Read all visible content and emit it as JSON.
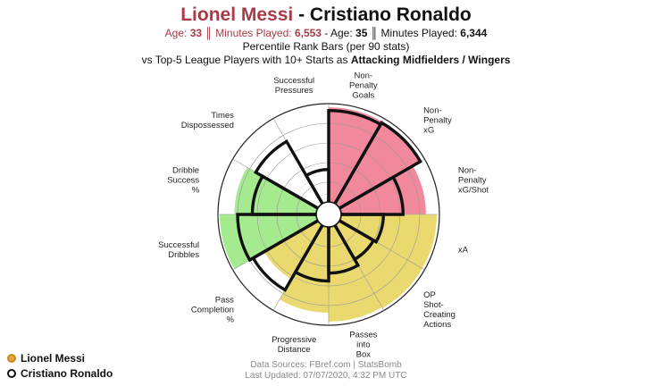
{
  "title": {
    "player1": "Lionel Messi",
    "separator": " - ",
    "player2": "Cristiano Ronaldo"
  },
  "info": {
    "age_label1": "Age: ",
    "age1": "33",
    "mins_label1": " ║ Minutes Played: ",
    "mins1": "6,553",
    "sep": " - ",
    "age_label2": "Age: ",
    "age2": "35",
    "mins_label2": " ║ Minutes Played: ",
    "mins2": "6,344"
  },
  "subtitle": "Percentile Rank Bars (per 90 stats)",
  "comparison": {
    "prefix": "vs Top-5 League Players with 10+ Starts as ",
    "group": "Attacking Midfielders / Wingers"
  },
  "legend": {
    "player1": "Lionel Messi",
    "player2": "Cristiano Ronaldo"
  },
  "footer": {
    "sources": "Data Sources: FBref.com | StatsBomb",
    "updated": "Last Updated: 07/07/2020, 4:32 PM UTC"
  },
  "colors": {
    "attacking": "#f2889c",
    "possession": "#e9d96e",
    "dribbling": "#a6ea90",
    "defending": "#ffffff",
    "outline": "#111111",
    "player1": "#e8a53a"
  },
  "chart_data": {
    "type": "polar_bar",
    "scale": [
      0,
      100
    ],
    "stats": [
      {
        "label": "Non-Penalty Goals",
        "category": "attacking",
        "player1": 96,
        "player2": 93
      },
      {
        "label": "Non-Penalty xG",
        "category": "attacking",
        "player1": 95,
        "player2": 95
      },
      {
        "label": "Non-Penalty xG/Shot",
        "category": "attacking",
        "player1": 86,
        "player2": 63
      },
      {
        "label": "xA",
        "category": "possession",
        "player1": 97,
        "player2": 43
      },
      {
        "label": "OP Shot-Creating Actions",
        "category": "possession",
        "player1": 97,
        "player2": 40
      },
      {
        "label": "Passes into Box",
        "category": "possession",
        "player1": 96,
        "player2": 47
      },
      {
        "label": "Progressive Distance",
        "category": "possession",
        "player1": 87,
        "player2": 55
      },
      {
        "label": "Pass Completion %",
        "category": "possession",
        "player1": 63,
        "player2": 76
      },
      {
        "label": "Successful Dribbles",
        "category": "dribbling",
        "player1": 98,
        "player2": 80
      },
      {
        "label": "Dribble Success %",
        "category": "dribbling",
        "player1": 83,
        "player2": 65
      },
      {
        "label": "Times Dispossessed",
        "category": "defending",
        "player1": 26,
        "player2": 73
      },
      {
        "label": "Successful Pressures",
        "category": "defending",
        "player1": 8,
        "player2": 33
      }
    ]
  }
}
